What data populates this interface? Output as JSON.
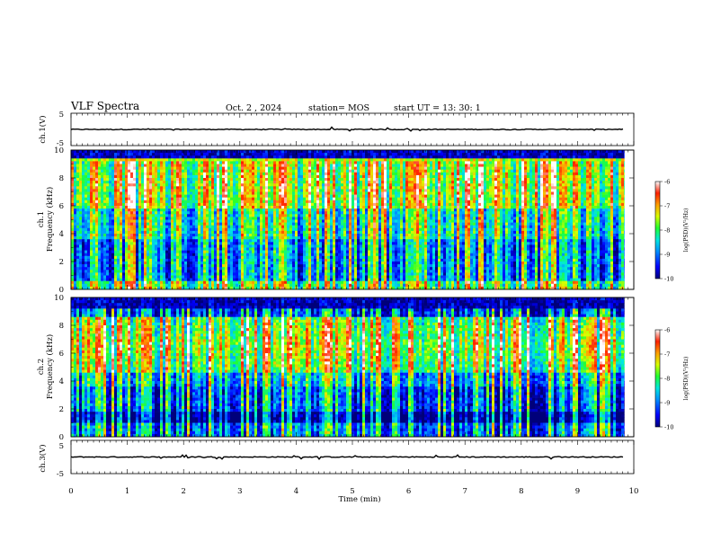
{
  "header": {
    "title": "VLF Spectra",
    "date": "Oct. 2 , 2024",
    "station": "station= MOS",
    "start": "start UT = 13: 30: 1"
  },
  "chart_data": [
    {
      "type": "line",
      "name": "ch1-waveform",
      "ylabel": "ch.1(V)",
      "ylim": [
        -5,
        5
      ],
      "y_ticks": [
        "5",
        "-5"
      ],
      "baseline_value": 0,
      "x_range_min": [
        0,
        9.83
      ]
    },
    {
      "type": "heatmap",
      "name": "ch1-spectrogram",
      "ylabel": "ch.1",
      "ylabel2": "Frequency (kHz)",
      "ylim": [
        0,
        10
      ],
      "y_ticks": [
        "0",
        "2",
        "4",
        "6",
        "8",
        "10"
      ],
      "x_range_min": [
        0,
        9.83
      ],
      "colorbar": {
        "label": "log(PSD)(V²/Hz)",
        "range": [
          -10,
          -6
        ],
        "ticks": [
          "-6",
          "-7",
          "-8",
          "-9",
          "-10"
        ]
      }
    },
    {
      "type": "heatmap",
      "name": "ch2-spectrogram",
      "ylabel": "ch.2",
      "ylabel2": "Frequency (kHz)",
      "ylim": [
        0,
        10
      ],
      "y_ticks": [
        "0",
        "2",
        "4",
        "6",
        "8",
        "10"
      ],
      "x_range_min": [
        0,
        9.83
      ],
      "colorbar": {
        "label": "log(PSD)(V²/Hz)",
        "range": [
          -10,
          -6
        ],
        "ticks": [
          "-6",
          "-7",
          "-8",
          "-9",
          "-10"
        ]
      }
    },
    {
      "type": "line",
      "name": "ch3-waveform",
      "ylabel": "ch.3(V)",
      "ylim": [
        -5,
        5
      ],
      "y_ticks": [
        "5",
        "-5"
      ],
      "baseline_value": 0,
      "x_range_min": [
        0,
        9.83
      ]
    }
  ],
  "x_axis": {
    "label": "Time (min)",
    "xlim": [
      0,
      10
    ],
    "ticks": [
      "0",
      "1",
      "2",
      "3",
      "4",
      "5",
      "6",
      "7",
      "8",
      "9",
      "10"
    ]
  },
  "colors": {
    "colormap": [
      "#00007a",
      "#0000ff",
      "#0090ff",
      "#00e8e0",
      "#20ff30",
      "#d8ff00",
      "#ffa000",
      "#ff2000",
      "#ffffff"
    ]
  }
}
